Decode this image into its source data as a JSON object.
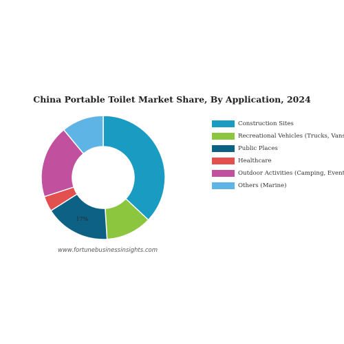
{
  "chart_data": {
    "type": "pie",
    "title": "China Portable Toilet Market Share, By Application, 2024",
    "categories": [
      "Construction Sites",
      "Recreational Vehicles (Trucks, Vans.)",
      "Public Places",
      "Healthcare",
      "Outdoor Activities (Camping, Events)",
      "Others (Marine)"
    ],
    "values": [
      37,
      12,
      17,
      4,
      19,
      11
    ],
    "colors": [
      "#1a9bc2",
      "#8cc63f",
      "#0d6184",
      "#e2504f",
      "#c1519e",
      "#5fb4e6"
    ],
    "data_labels": [
      "",
      "",
      "17%",
      "",
      "",
      ""
    ],
    "legend_position": "right",
    "donut": true
  },
  "watermark": "www.fortunebusinessinsights.com"
}
